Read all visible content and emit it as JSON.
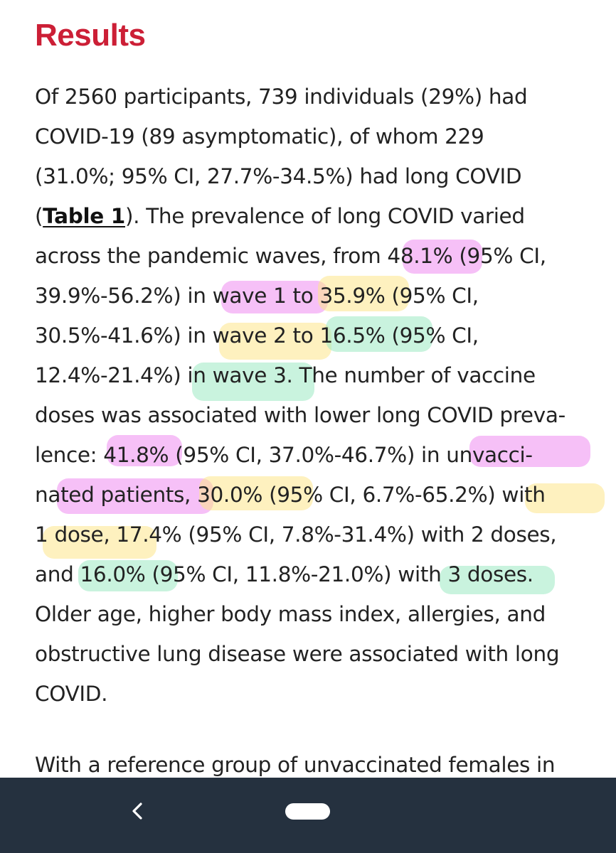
{
  "section": {
    "title": "Results"
  },
  "paragraph1": [
    "Of 2560 participants, 739 individuals (29%) had",
    "COVID-19 (89 asymptomatic), of whom 229",
    "(31.0%; 95% CI, 27.7%-34.5%) had long COVID",
    {
      "before": "(",
      "link": "Table 1",
      "after": "). The prevalence of long COVID varied"
    },
    "across the pandemic waves, from 48.1% (95% CI,",
    "39.9%-56.2%) in wave 1 to 35.9% (95% CI,",
    "30.5%-41.6%) in wave 2 to 16.5% (95% CI,",
    "12.4%-21.4%) in wave 3. The number of vaccine",
    "doses was associated with lower long COVID preva-",
    "lence: 41.8% (95% CI, 37.0%-46.7%) in unvacci-",
    "nated patients, 30.0% (95% CI, 6.7%-65.2%) with",
    "1 dose, 17.4% (95% CI, 7.8%-31.4%) with 2 doses,",
    "and 16.0% (95% CI, 11.8%-21.0%) with 3 doses.",
    "Older age, higher body mass index, allergies, and",
    "obstructive lung disease were associated with long",
    "COVID."
  ],
  "paragraph2": [
    "With a reference group of unvaccinated females in"
  ],
  "colors": {
    "title": "#cc1f36",
    "text": "#222222",
    "highlight_magenta": "#ee8cf0",
    "highlight_yellow": "#fde68a",
    "highlight_green": "#9ce9c3",
    "nav_bar": "#25313f"
  },
  "navbar": {
    "back_icon": "chevron-left-icon",
    "home_icon": "home-pill-icon"
  }
}
